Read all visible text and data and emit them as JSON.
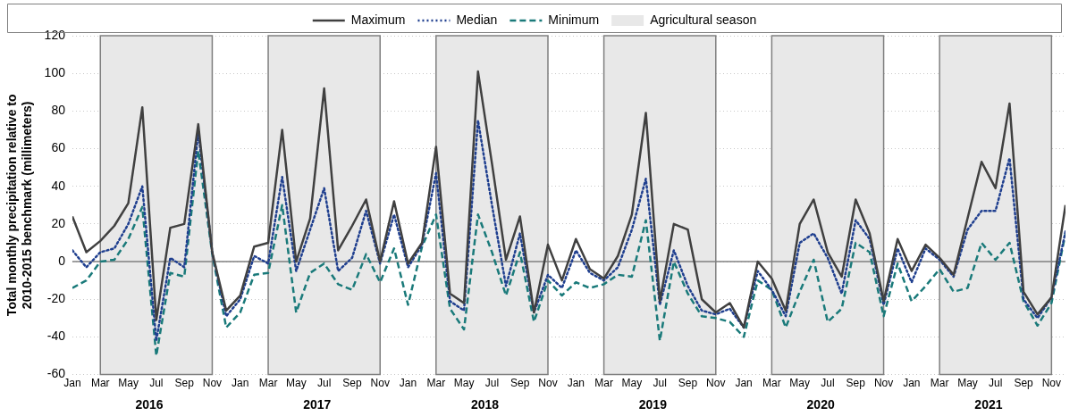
{
  "chart_data": {
    "type": "line",
    "ylabel": "Total monthly precipitation relative to\n2010-2015 benchmark (millimeters)",
    "x": [
      "2016-01",
      "2016-02",
      "2016-03",
      "2016-04",
      "2016-05",
      "2016-06",
      "2016-07",
      "2016-08",
      "2016-09",
      "2016-10",
      "2016-11",
      "2016-12",
      "2017-01",
      "2017-02",
      "2017-03",
      "2017-04",
      "2017-05",
      "2017-06",
      "2017-07",
      "2017-08",
      "2017-09",
      "2017-10",
      "2017-11",
      "2017-12",
      "2018-01",
      "2018-02",
      "2018-03",
      "2018-04",
      "2018-05",
      "2018-06",
      "2018-07",
      "2018-08",
      "2018-09",
      "2018-10",
      "2018-11",
      "2018-12",
      "2019-01",
      "2019-02",
      "2019-03",
      "2019-04",
      "2019-05",
      "2019-06",
      "2019-07",
      "2019-08",
      "2019-09",
      "2019-10",
      "2019-11",
      "2019-12",
      "2020-01",
      "2020-02",
      "2020-03",
      "2020-04",
      "2020-05",
      "2020-06",
      "2020-07",
      "2020-08",
      "2020-09",
      "2020-10",
      "2020-11",
      "2020-12",
      "2021-01",
      "2021-02",
      "2021-03",
      "2021-04",
      "2021-05",
      "2021-06",
      "2021-07",
      "2021-08",
      "2021-09",
      "2021-10",
      "2021-11",
      "2021-12"
    ],
    "series": [
      {
        "name": "Maximum",
        "color": "#404040",
        "line_style": "solid",
        "values": [
          24,
          5,
          11,
          19,
          31,
          82,
          -31,
          18,
          20,
          73,
          5,
          -26,
          -18,
          8,
          10,
          70,
          0,
          23,
          92,
          6,
          19,
          33,
          0,
          32,
          -1,
          10,
          61,
          -17,
          -22,
          101,
          52,
          1,
          24,
          -27,
          9,
          -10,
          12,
          -4,
          -9,
          3,
          25,
          79,
          -21,
          20,
          17,
          -20,
          -27,
          -22,
          -35,
          0,
          -9,
          -26,
          20,
          33,
          5,
          -8,
          33,
          15,
          -21,
          12,
          -5,
          9,
          2,
          -7,
          23,
          53,
          39,
          84,
          -16,
          -28,
          -19,
          30
        ]
      },
      {
        "name": "Median",
        "color": "#1f3f8f",
        "line_style": "dotted",
        "values": [
          6,
          -3,
          5,
          7,
          20,
          40,
          -42,
          2,
          -3,
          69,
          5,
          -29,
          -20,
          3,
          -1,
          45,
          -5,
          17,
          39,
          -5,
          2,
          27,
          -1,
          25,
          -3,
          9,
          47,
          -21,
          -26,
          75,
          30,
          -13,
          15,
          -27,
          -7,
          -14,
          6,
          -6,
          -10,
          -3,
          17,
          44,
          -23,
          6,
          -13,
          -26,
          -28,
          -25,
          -35,
          -5,
          -15,
          -29,
          10,
          15,
          2,
          -17,
          22,
          12,
          -23,
          7,
          -11,
          7,
          1,
          -8,
          17,
          27,
          27,
          55,
          -20,
          -30,
          -19,
          16
        ]
      },
      {
        "name": "Minimum",
        "color": "#1a7a7a",
        "line_style": "dashed",
        "values": [
          -14,
          -10,
          0,
          1,
          12,
          29,
          -50,
          -6,
          -8,
          59,
          4,
          -35,
          -27,
          -7,
          -6,
          30,
          -27,
          -6,
          -1,
          -12,
          -15,
          4,
          -11,
          7,
          -23,
          8,
          25,
          -25,
          -36,
          25,
          5,
          -18,
          5,
          -32,
          -10,
          -18,
          -11,
          -14,
          -12,
          -7,
          -8,
          22,
          -42,
          0,
          -17,
          -29,
          -30,
          -32,
          -40,
          -10,
          -15,
          -35,
          -16,
          1,
          -32,
          -25,
          10,
          5,
          -29,
          -1,
          -21,
          -13,
          -4,
          -16,
          -14,
          10,
          1,
          10,
          -21,
          -34,
          -22,
          15
        ]
      }
    ],
    "bands": [
      {
        "axis": "x",
        "from": "2016-03",
        "to": "2016-11",
        "label": "Agricultural season",
        "color": "#e8e8e8"
      },
      {
        "axis": "x",
        "from": "2017-03",
        "to": "2017-11",
        "color": "#e8e8e8"
      },
      {
        "axis": "x",
        "from": "2018-03",
        "to": "2018-11",
        "color": "#e8e8e8"
      },
      {
        "axis": "x",
        "from": "2019-03",
        "to": "2019-11",
        "color": "#e8e8e8"
      },
      {
        "axis": "x",
        "from": "2020-03",
        "to": "2020-11",
        "color": "#e8e8e8"
      },
      {
        "axis": "x",
        "from": "2021-03",
        "to": "2021-11",
        "color": "#e8e8e8"
      }
    ],
    "annotations": [
      "2016",
      "2017",
      "2018",
      "2019",
      "2020",
      "2021"
    ],
    "xlim": [
      "2016-01",
      "2021-12"
    ],
    "xticks": [
      {
        "value": "2016-01",
        "label": "Jan"
      },
      {
        "value": "2016-03",
        "label": "Mar"
      },
      {
        "value": "2016-05",
        "label": "May"
      },
      {
        "value": "2016-07",
        "label": "Jul"
      },
      {
        "value": "2016-09",
        "label": "Sep"
      },
      {
        "value": "2016-11",
        "label": "Nov"
      },
      {
        "value": "2017-01",
        "label": "Jan"
      },
      {
        "value": "2017-03",
        "label": "Mar"
      },
      {
        "value": "2017-05",
        "label": "May"
      },
      {
        "value": "2017-07",
        "label": "Jul"
      },
      {
        "value": "2017-09",
        "label": "Sep"
      },
      {
        "value": "2017-11",
        "label": "Nov"
      },
      {
        "value": "2018-01",
        "label": "Jan"
      },
      {
        "value": "2018-03",
        "label": "Mar"
      },
      {
        "value": "2018-05",
        "label": "May"
      },
      {
        "value": "2018-07",
        "label": "Jul"
      },
      {
        "value": "2018-09",
        "label": "Sep"
      },
      {
        "value": "2018-11",
        "label": "Nov"
      },
      {
        "value": "2019-01",
        "label": "Jan"
      },
      {
        "value": "2019-03",
        "label": "Mar"
      },
      {
        "value": "2019-05",
        "label": "May"
      },
      {
        "value": "2019-07",
        "label": "Jul"
      },
      {
        "value": "2019-09",
        "label": "Sep"
      },
      {
        "value": "2019-11",
        "label": "Nov"
      },
      {
        "value": "2020-01",
        "label": "Jan"
      },
      {
        "value": "2020-03",
        "label": "Mar"
      },
      {
        "value": "2020-05",
        "label": "May"
      },
      {
        "value": "2020-07",
        "label": "Jul"
      },
      {
        "value": "2020-09",
        "label": "Sep"
      },
      {
        "value": "2020-11",
        "label": "Nov"
      },
      {
        "value": "2021-01",
        "label": "Jan"
      },
      {
        "value": "2021-03",
        "label": "Mar"
      },
      {
        "value": "2021-05",
        "label": "May"
      },
      {
        "value": "2021-07",
        "label": "Jul"
      },
      {
        "value": "2021-09",
        "label": "Sep"
      },
      {
        "value": "2021-11",
        "label": "Nov"
      }
    ],
    "ylim": [
      -60,
      120
    ],
    "yticks": [
      -60,
      -40,
      -20,
      0,
      20,
      40,
      60,
      80,
      100,
      120
    ],
    "grid": "y",
    "legend": "top",
    "marker": "none"
  }
}
